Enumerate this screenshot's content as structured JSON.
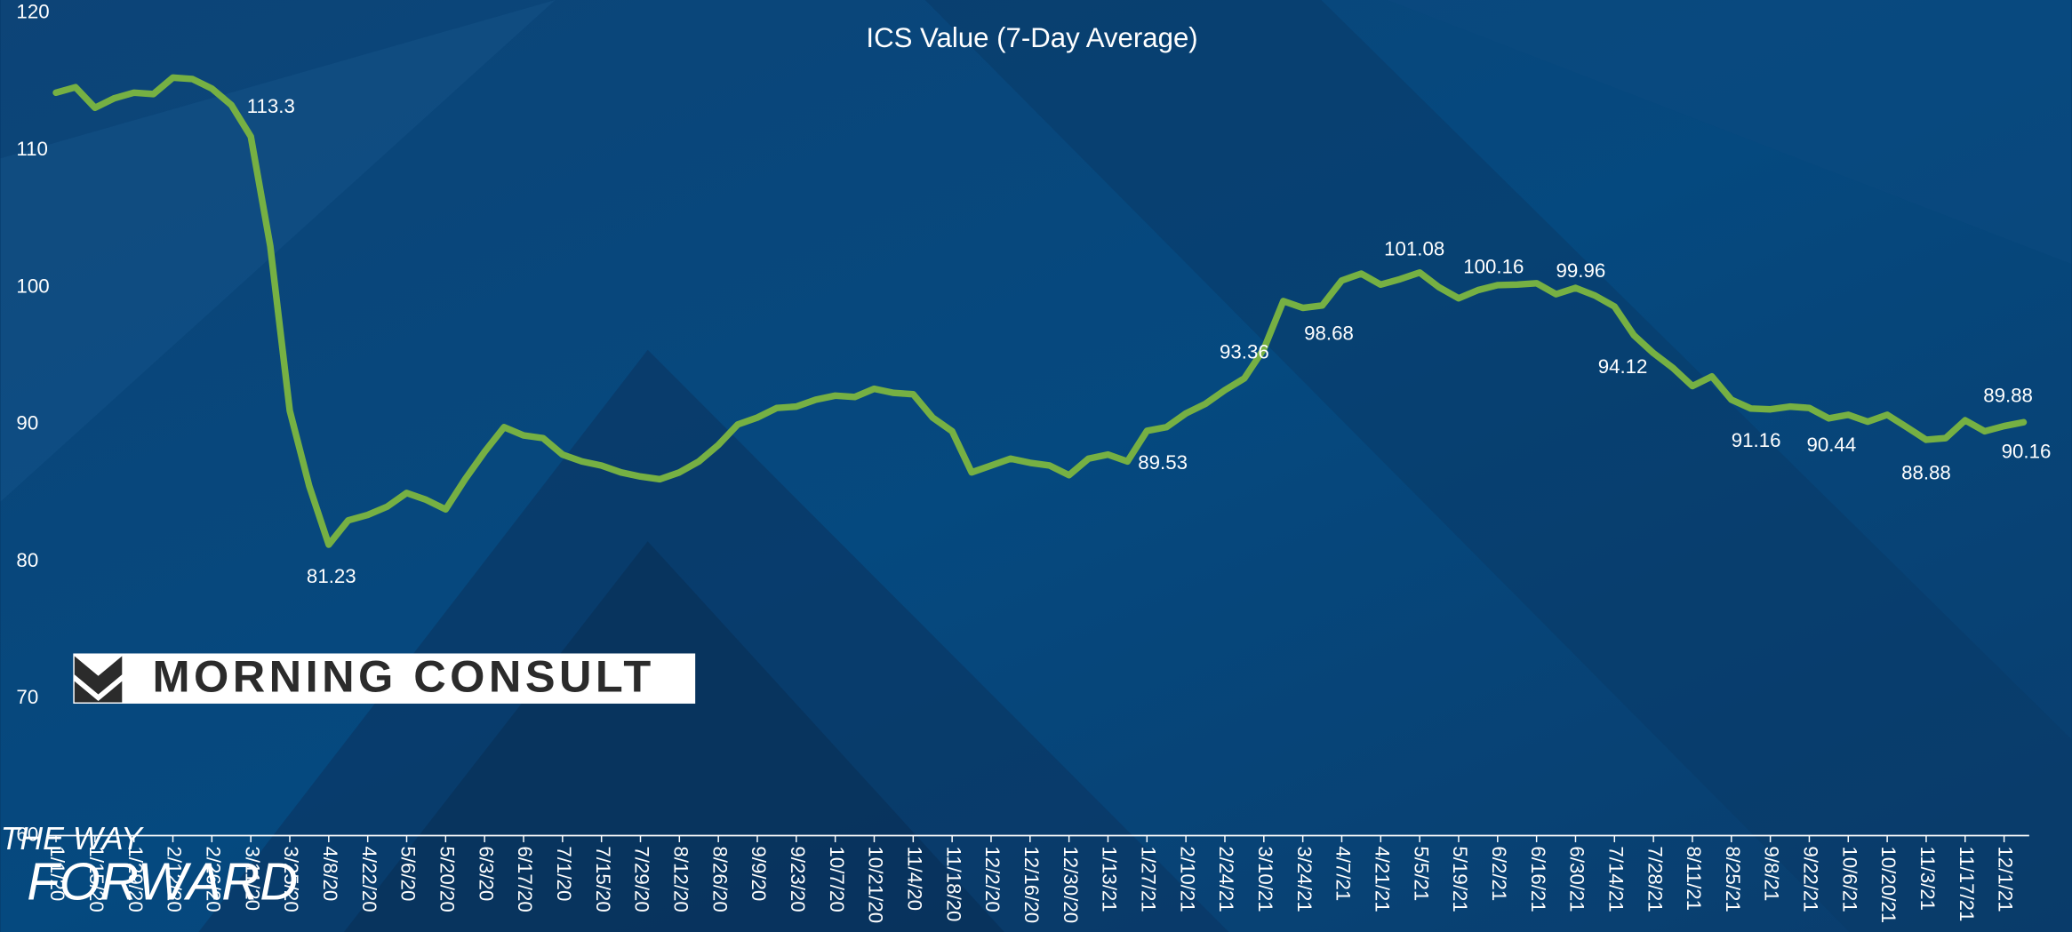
{
  "chart_data": {
    "type": "line",
    "title": "ICS Value (7-Day Average)",
    "categories": [
      "1/1/20",
      null,
      "1/15/20",
      null,
      "1/29/20",
      null,
      "2/12/20",
      null,
      "2/26/20",
      null,
      "3/11/20",
      null,
      "3/25/20",
      null,
      "4/8/20",
      null,
      "4/22/20",
      null,
      "5/6/20",
      null,
      "5/20/20",
      null,
      "6/3/20",
      null,
      "6/17/20",
      null,
      "7/1/20",
      null,
      "7/15/20",
      null,
      "7/29/20",
      null,
      "8/12/20",
      null,
      "8/26/20",
      null,
      "9/9/20",
      null,
      "9/23/20",
      null,
      "10/7/20",
      null,
      "10/21/20",
      null,
      "11/4/20",
      null,
      "11/18/20",
      null,
      "12/2/20",
      null,
      "12/16/20",
      null,
      "12/30/20",
      null,
      "1/13/21",
      null,
      "1/27/21",
      null,
      "2/10/21",
      null,
      "2/24/21",
      null,
      "3/10/21",
      null,
      "3/24/21",
      null,
      "4/7/21",
      null,
      "4/21/21",
      null,
      "5/5/21",
      null,
      "5/19/21",
      null,
      "6/2/21",
      null,
      "6/16/21",
      null,
      "6/30/21",
      null,
      "7/14/21",
      null,
      "7/28/21",
      null,
      "8/11/21",
      null,
      "8/25/21",
      null,
      "9/8/21",
      null,
      "9/22/21",
      null,
      "10/6/21",
      null,
      "10/20/21",
      null,
      "11/3/21",
      null,
      "11/17/21",
      null,
      "12/1/21",
      null
    ],
    "series": [
      {
        "name": "ICS Value",
        "color": "#76b043",
        "values": [
          114.2,
          114.6,
          113.1,
          113.8,
          114.2,
          114.1,
          115.3,
          115.2,
          114.5,
          113.3,
          111,
          103,
          91,
          85.5,
          81.23,
          83,
          83.4,
          84,
          85,
          84.5,
          83.8,
          86,
          88,
          89.8,
          89.2,
          89,
          87.8,
          87.3,
          87,
          86.5,
          86.2,
          86,
          86.5,
          87.3,
          88.5,
          90,
          90.5,
          91.2,
          91.3,
          91.8,
          92.1,
          92,
          92.6,
          92.3,
          92.2,
          90.5,
          89.5,
          86.5,
          87,
          87.5,
          87.2,
          87,
          86.3,
          87.5,
          87.8,
          87.3,
          89.53,
          89.8,
          90.8,
          91.5,
          92.5,
          93.36,
          95.5,
          99,
          98.5,
          98.68,
          100.5,
          101,
          100.2,
          100.6,
          101.08,
          100,
          99.2,
          99.8,
          100.16,
          100.2,
          100.3,
          99.5,
          99.96,
          99.4,
          98.6,
          96.5,
          95.2,
          94.12,
          92.8,
          93.5,
          91.8,
          91.16,
          91.1,
          91.3,
          91.2,
          90.44,
          90.7,
          90.2,
          90.7,
          89.8,
          88.88,
          89,
          90.3,
          89.5,
          89.88,
          90.16
        ],
        "value_labels": [
          null,
          null,
          null,
          null,
          null,
          null,
          null,
          null,
          null,
          "113.3",
          null,
          null,
          null,
          null,
          "81.23",
          null,
          null,
          null,
          null,
          null,
          null,
          null,
          null,
          null,
          null,
          null,
          null,
          null,
          null,
          null,
          null,
          null,
          null,
          null,
          null,
          null,
          null,
          null,
          null,
          null,
          null,
          null,
          null,
          null,
          null,
          null,
          null,
          null,
          null,
          null,
          null,
          null,
          null,
          null,
          null,
          null,
          "89.53",
          null,
          null,
          null,
          null,
          "93.36",
          null,
          null,
          null,
          "98.68",
          null,
          null,
          null,
          null,
          "101.08",
          null,
          null,
          null,
          "100.16",
          null,
          null,
          null,
          "99.96",
          null,
          null,
          null,
          null,
          "94.12",
          null,
          null,
          null,
          "91.16",
          null,
          null,
          null,
          "90.44",
          null,
          null,
          null,
          null,
          "88.88",
          null,
          null,
          null,
          "89.88",
          "90.16"
        ]
      }
    ],
    "ylim": [
      60,
      120
    ],
    "yticks": [
      60,
      70,
      80,
      90,
      100,
      110,
      120
    ],
    "grid": false
  },
  "logo": "MORNING CONSULT",
  "watermark": [
    "THE WAY",
    "FORWARD"
  ]
}
